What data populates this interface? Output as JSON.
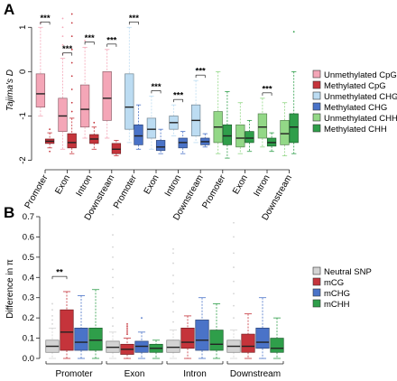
{
  "chart_data": [
    {
      "panel": "A",
      "type": "box",
      "ylabel": "Tajima's D",
      "ylim": [
        -2.05,
        1.25
      ],
      "yticks": [
        -2,
        -1,
        0,
        1
      ],
      "ytick_labels": [
        "-2",
        "-1",
        "0",
        "1"
      ],
      "legend": [
        {
          "name": "Unmethylated CpG",
          "color": "#f4a6b7"
        },
        {
          "name": "Methylated CpG",
          "color": "#c5343b"
        },
        {
          "name": "Unmethylated CHG",
          "color": "#bcdcf2"
        },
        {
          "name": "Methylated CHG",
          "color": "#4a73c8"
        },
        {
          "name": "Unmethylated CHH",
          "color": "#93d887"
        },
        {
          "name": "Methylated CHH",
          "color": "#2f9e4a"
        }
      ],
      "groups": [
        {
          "label": "Promoter",
          "boxes": [
            {
              "series": 0,
              "whislo": -1.0,
              "q1": -0.8,
              "med": -0.5,
              "q3": -0.05,
              "whishi": 1.0,
              "fliers": [
                1.1
              ]
            },
            {
              "series": 1,
              "whislo": -1.72,
              "q1": -1.62,
              "med": -1.57,
              "q3": -1.52,
              "whishi": -1.38,
              "fliers": [
                -1.3,
                -1.8
              ]
            }
          ]
        },
        {
          "label": "Exon",
          "boxes": [
            {
              "series": 0,
              "whislo": -1.75,
              "q1": -1.35,
              "med": -1.0,
              "q3": -0.6,
              "whishi": 0.3,
              "fliers": [
                0.4,
                0.6,
                0.8,
                1.0,
                1.2
              ]
            },
            {
              "series": 1,
              "whislo": -1.85,
              "q1": -1.72,
              "med": -1.6,
              "q3": -1.4,
              "whishi": -1.05,
              "fliers": [
                -0.9,
                -0.7,
                -0.4,
                -0.1,
                0.2,
                0.5,
                0.8,
                1.1,
                1.3
              ]
            }
          ]
        },
        {
          "label": "Intron",
          "boxes": [
            {
              "series": 0,
              "whislo": -1.5,
              "q1": -1.25,
              "med": -0.85,
              "q3": -0.3,
              "whishi": 0.55,
              "fliers": [
                0.7
              ]
            },
            {
              "series": 1,
              "whislo": -1.75,
              "q1": -1.62,
              "med": -1.52,
              "q3": -1.42,
              "whishi": -1.25,
              "fliers": [
                -1.15
              ]
            }
          ]
        },
        {
          "label": "Downstream",
          "boxes": [
            {
              "series": 0,
              "whislo": -1.5,
              "q1": -1.1,
              "med": -0.6,
              "q3": 0.0,
              "whishi": 0.5,
              "fliers": []
            },
            {
              "series": 1,
              "whislo": -1.9,
              "q1": -1.85,
              "med": -1.75,
              "q3": -1.62,
              "whishi": -1.55,
              "fliers": []
            }
          ]
        },
        {
          "label": "Promoter",
          "boxes": [
            {
              "series": 2,
              "whislo": -1.6,
              "q1": -1.3,
              "med": -0.8,
              "q3": -0.05,
              "whishi": 1.0,
              "fliers": []
            },
            {
              "series": 3,
              "whislo": -1.75,
              "q1": -1.65,
              "med": -1.45,
              "q3": -1.2,
              "whishi": -0.75,
              "fliers": []
            }
          ]
        },
        {
          "label": "Exon",
          "boxes": [
            {
              "series": 2,
              "whislo": -1.75,
              "q1": -1.5,
              "med": -1.3,
              "q3": -1.05,
              "whishi": -0.55,
              "fliers": []
            },
            {
              "series": 3,
              "whislo": -1.85,
              "q1": -1.78,
              "med": -1.7,
              "q3": -1.55,
              "whishi": -1.3,
              "fliers": []
            }
          ]
        },
        {
          "label": "Intron",
          "boxes": [
            {
              "series": 2,
              "whislo": -1.45,
              "q1": -1.3,
              "med": -1.15,
              "q3": -1.0,
              "whishi": -0.75,
              "fliers": []
            },
            {
              "series": 3,
              "whislo": -1.85,
              "q1": -1.72,
              "med": -1.6,
              "q3": -1.5,
              "whishi": -1.35,
              "fliers": []
            }
          ]
        },
        {
          "label": "Downstream",
          "boxes": [
            {
              "series": 2,
              "whislo": -1.6,
              "q1": -1.45,
              "med": -1.1,
              "q3": -0.75,
              "whishi": -0.2,
              "fliers": [
                0.05
              ]
            },
            {
              "series": 3,
              "whislo": -1.7,
              "q1": -1.65,
              "med": -1.58,
              "q3": -1.5,
              "whishi": -1.4,
              "fliers": []
            }
          ]
        },
        {
          "label": "Promoter",
          "boxes": [
            {
              "series": 4,
              "whislo": -1.85,
              "q1": -1.6,
              "med": -1.25,
              "q3": -0.9,
              "whishi": 0.0,
              "fliers": []
            },
            {
              "series": 5,
              "whislo": -1.95,
              "q1": -1.65,
              "med": -1.45,
              "q3": -1.2,
              "whishi": -0.45,
              "fliers": []
            }
          ]
        },
        {
          "label": "Exon",
          "boxes": [
            {
              "series": 4,
              "whislo": -1.85,
              "q1": -1.7,
              "med": -1.5,
              "q3": -1.2,
              "whishi": -0.7,
              "fliers": []
            },
            {
              "series": 5,
              "whislo": -1.8,
              "q1": -1.6,
              "med": -1.5,
              "q3": -1.35,
              "whishi": -1.1,
              "fliers": []
            }
          ]
        },
        {
          "label": "Intron",
          "boxes": [
            {
              "series": 4,
              "whislo": -1.7,
              "q1": -1.5,
              "med": -1.25,
              "q3": -0.95,
              "whishi": -0.6,
              "fliers": []
            },
            {
              "series": 5,
              "whislo": -1.8,
              "q1": -1.68,
              "med": -1.6,
              "q3": -1.5,
              "whishi": -1.38,
              "fliers": []
            }
          ]
        },
        {
          "label": "Downstream",
          "boxes": [
            {
              "series": 4,
              "whislo": -1.9,
              "q1": -1.65,
              "med": -1.4,
              "q3": -1.1,
              "whishi": -0.7,
              "fliers": []
            },
            {
              "series": 5,
              "whislo": -1.85,
              "q1": -1.6,
              "med": -1.25,
              "q3": -0.95,
              "whishi": 0.0,
              "fliers": [
                0.9
              ]
            }
          ]
        }
      ],
      "significance": [
        {
          "group": 0,
          "label": "***"
        },
        {
          "group": 1,
          "label": "***"
        },
        {
          "group": 2,
          "label": "***"
        },
        {
          "group": 3,
          "label": "***"
        },
        {
          "group": 4,
          "label": "***"
        },
        {
          "group": 5,
          "label": "***"
        },
        {
          "group": 6,
          "label": "***"
        },
        {
          "group": 7,
          "label": "***"
        },
        {
          "group": 10,
          "label": "***"
        }
      ]
    },
    {
      "panel": "B",
      "type": "box",
      "ylabel": "Difference in π",
      "ylim": [
        0,
        0.7
      ],
      "yticks": [
        0.0,
        0.1,
        0.2,
        0.3,
        0.4,
        0.5,
        0.6,
        0.7
      ],
      "ytick_labels": [
        "0.0",
        "0.1",
        "0.2",
        "0.3",
        "0.4",
        "0.5",
        "0.6",
        "0.7"
      ],
      "legend": [
        {
          "name": "Neutral SNP",
          "color": "#d3d3d3"
        },
        {
          "name": "mCG",
          "color": "#c5343b"
        },
        {
          "name": "mCHG",
          "color": "#4a73c8"
        },
        {
          "name": "mCHH",
          "color": "#2f9e4a"
        }
      ],
      "categories": [
        "Promoter",
        "Exon",
        "Intron",
        "Downstream"
      ],
      "groups": [
        {
          "label": "Promoter",
          "boxes": [
            {
              "series": 0,
              "whislo": 0.0,
              "q1": 0.03,
              "med": 0.06,
              "q3": 0.09,
              "whishi": 0.15,
              "fliers": [
                0.17,
                0.19,
                0.21,
                0.24,
                0.27
              ]
            },
            {
              "series": 1,
              "whislo": 0.0,
              "q1": 0.04,
              "med": 0.13,
              "q3": 0.24,
              "whishi": 0.33,
              "fliers": []
            },
            {
              "series": 2,
              "whislo": 0.0,
              "q1": 0.04,
              "med": 0.08,
              "q3": 0.15,
              "whishi": 0.31,
              "fliers": []
            },
            {
              "series": 3,
              "whislo": 0.0,
              "q1": 0.04,
              "med": 0.09,
              "q3": 0.15,
              "whishi": 0.34,
              "fliers": []
            }
          ]
        },
        {
          "label": "Exon",
          "boxes": [
            {
              "series": 0,
              "whislo": 0.0,
              "q1": 0.03,
              "med": 0.055,
              "q3": 0.085,
              "whishi": 0.13,
              "fliers": [
                0.16,
                0.2,
                0.25,
                0.3,
                0.35,
                0.4,
                0.44,
                0.5,
                0.55,
                0.61,
                0.71
              ]
            },
            {
              "series": 1,
              "whislo": 0.0,
              "q1": 0.02,
              "med": 0.045,
              "q3": 0.07,
              "whishi": 0.1,
              "fliers": [
                0.12,
                0.13,
                0.14,
                0.15,
                0.16,
                0.17
              ]
            },
            {
              "series": 2,
              "whislo": 0.0,
              "q1": 0.03,
              "med": 0.06,
              "q3": 0.085,
              "whishi": 0.13,
              "fliers": [
                0.2
              ]
            },
            {
              "series": 3,
              "whislo": 0.0,
              "q1": 0.03,
              "med": 0.05,
              "q3": 0.07,
              "whishi": 0.09,
              "fliers": []
            }
          ]
        },
        {
          "label": "Intron",
          "boxes": [
            {
              "series": 0,
              "whislo": 0.0,
              "q1": 0.03,
              "med": 0.055,
              "q3": 0.09,
              "whishi": 0.14,
              "fliers": [
                0.18,
                0.23,
                0.28,
                0.32,
                0.37,
                0.41,
                0.47,
                0.52,
                0.54
              ]
            },
            {
              "series": 1,
              "whislo": 0.0,
              "q1": 0.05,
              "med": 0.08,
              "q3": 0.15,
              "whishi": 0.21,
              "fliers": []
            },
            {
              "series": 2,
              "whislo": 0.0,
              "q1": 0.04,
              "med": 0.09,
              "q3": 0.19,
              "whishi": 0.3,
              "fliers": []
            },
            {
              "series": 3,
              "whislo": 0.0,
              "q1": 0.04,
              "med": 0.07,
              "q3": 0.14,
              "whishi": 0.27,
              "fliers": []
            }
          ]
        },
        {
          "label": "Downstream",
          "boxes": [
            {
              "series": 0,
              "whislo": 0.0,
              "q1": 0.03,
              "med": 0.06,
              "q3": 0.09,
              "whishi": 0.14,
              "fliers": [
                0.2,
                0.26,
                0.32,
                0.38,
                0.45,
                0.52,
                0.6,
                0.67
              ]
            },
            {
              "series": 1,
              "whislo": 0.0,
              "q1": 0.03,
              "med": 0.06,
              "q3": 0.12,
              "whishi": 0.22,
              "fliers": []
            },
            {
              "series": 2,
              "whislo": 0.0,
              "q1": 0.05,
              "med": 0.08,
              "q3": 0.15,
              "whishi": 0.3,
              "fliers": []
            },
            {
              "series": 3,
              "whislo": 0.0,
              "q1": 0.03,
              "med": 0.05,
              "q3": 0.1,
              "whishi": 0.2,
              "fliers": []
            }
          ]
        }
      ],
      "significance": [
        {
          "group": 0,
          "from": 0,
          "to": 1,
          "label": "**"
        }
      ]
    }
  ]
}
